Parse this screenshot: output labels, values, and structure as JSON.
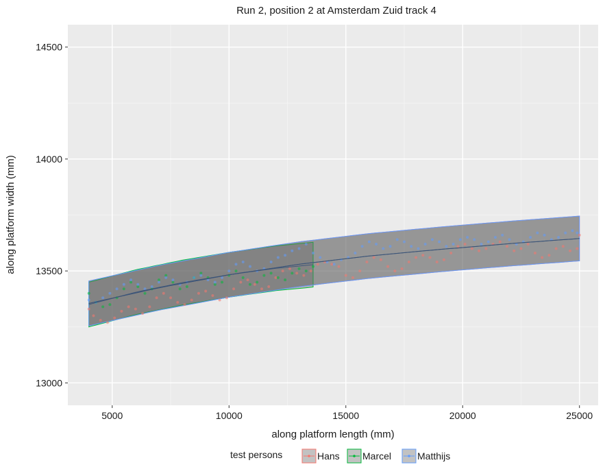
{
  "chart_data": {
    "type": "line",
    "title": "Run 2, position 2 at Amsterdam Zuid track 4",
    "xlabel": "along platform length (mm)",
    "ylabel": "along platform width (mm)",
    "xlim": [
      3100,
      25800
    ],
    "ylim": [
      12900,
      14600
    ],
    "x_ticks": [
      5000,
      10000,
      15000,
      20000,
      25000
    ],
    "y_ticks": [
      13000,
      13500,
      14000,
      14500
    ],
    "x_tick_labels": [
      "5000",
      "10000",
      "15000",
      "20000",
      "25000"
    ],
    "y_tick_labels": [
      "13000",
      "13500",
      "14000",
      "14500"
    ],
    "grid": true,
    "legend": {
      "title": "test persons",
      "position": "bottom"
    },
    "band_half_width": 100,
    "series": [
      {
        "name": "Hans",
        "color": "#F8766D",
        "fit": {
          "x": [
            4000,
            7000,
            10000,
            13000,
            16000,
            19000,
            22000,
            25000
          ],
          "y": [
            13355,
            13425,
            13483,
            13530,
            13567,
            13596,
            13622,
            13645
          ]
        },
        "points": {
          "x": [
            4000,
            4200,
            4500,
            4800,
            5100,
            5400,
            5700,
            6000,
            6300,
            6600,
            6900,
            7200,
            7500,
            7800,
            8100,
            8400,
            8700,
            9000,
            9300,
            9600,
            9900,
            10200,
            10500,
            10800,
            11100,
            11400,
            11700,
            12000,
            12300,
            12600,
            12900,
            13200,
            13500,
            13800,
            14100,
            14400,
            14700,
            15000,
            15300,
            15600,
            15900,
            16200,
            16500,
            16800,
            17100,
            17400,
            17700,
            18000,
            18300,
            18600,
            18900,
            19200,
            19500,
            19800,
            20100,
            20400,
            20700,
            21000,
            21300,
            21600,
            21900,
            22200,
            22500,
            22800,
            23100,
            23400,
            23700,
            24000,
            24300,
            24600,
            24900,
            25000
          ],
          "y": [
            13330,
            13300,
            13280,
            13270,
            13290,
            13320,
            13340,
            13330,
            13310,
            13340,
            13380,
            13400,
            13380,
            13360,
            13350,
            13370,
            13400,
            13410,
            13390,
            13370,
            13380,
            13420,
            13450,
            13460,
            13440,
            13420,
            13430,
            13470,
            13500,
            13510,
            13490,
            13480,
            13500,
            13530,
            13540,
            13530,
            13520,
            13480,
            13470,
            13500,
            13540,
            13560,
            13550,
            13520,
            13500,
            13510,
            13540,
            13560,
            13570,
            13560,
            13540,
            13550,
            13580,
            13610,
            13620,
            13600,
            13590,
            13600,
            13620,
            13630,
            13610,
            13590,
            13600,
            13620,
            13580,
            13560,
            13570,
            13600,
            13610,
            13590,
            13600,
            13660
          ]
        }
      },
      {
        "name": "Marcel",
        "color": "#00BA38",
        "fit": {
          "x": [
            4000,
            6000,
            8000,
            10000,
            12000,
            13600
          ],
          "y": [
            13350,
            13405,
            13448,
            13483,
            13512,
            13528
          ]
        },
        "points": {
          "x": [
            4000,
            4300,
            4600,
            4900,
            5200,
            5500,
            5800,
            6100,
            6400,
            6700,
            7000,
            7300,
            7600,
            7900,
            8200,
            8500,
            8800,
            9100,
            9400,
            9700,
            10000,
            10300,
            10600,
            10900,
            11200,
            11500,
            11800,
            12100,
            12400,
            12700,
            13000,
            13300,
            13600
          ],
          "y": [
            13400,
            13360,
            13340,
            13350,
            13380,
            13420,
            13450,
            13430,
            13400,
            13420,
            13460,
            13480,
            13450,
            13420,
            13430,
            13470,
            13490,
            13470,
            13440,
            13450,
            13480,
            13500,
            13470,
            13440,
            13450,
            13480,
            13490,
            13470,
            13460,
            13490,
            13510,
            13500,
            13520
          ]
        }
      },
      {
        "name": "Matthijs",
        "color": "#619CFF",
        "fit": {
          "x": [
            4000,
            7000,
            10000,
            13000,
            16000,
            19000,
            22000,
            25000
          ],
          "y": [
            13355,
            13425,
            13483,
            13530,
            13567,
            13596,
            13622,
            13645
          ]
        },
        "points": {
          "x": [
            4000,
            4300,
            4600,
            4900,
            5200,
            5500,
            5800,
            6100,
            6400,
            6700,
            7000,
            7300,
            7600,
            7900,
            8200,
            8500,
            8800,
            9100,
            9400,
            9700,
            10000,
            10300,
            10600,
            10900,
            11200,
            11500,
            11800,
            12100,
            12400,
            12700,
            13000,
            13300,
            13600,
            13900,
            14200,
            14500,
            14800,
            15100,
            15400,
            15700,
            16000,
            16300,
            16600,
            16900,
            17200,
            17500,
            17800,
            18100,
            18400,
            18700,
            19000,
            19300,
            19600,
            19900,
            20200,
            20500,
            20800,
            21100,
            21400,
            21700,
            22000,
            22300,
            22600,
            22900,
            23200,
            23500,
            23800,
            24100,
            24400,
            24700,
            24900
          ],
          "y": [
            13370,
            13360,
            13380,
            13400,
            13420,
            13440,
            13460,
            13440,
            13420,
            13430,
            13450,
            13470,
            13460,
            13440,
            13450,
            13470,
            13480,
            13460,
            13450,
            13470,
            13500,
            13530,
            13540,
            13520,
            13500,
            13510,
            13540,
            13560,
            13570,
            13590,
            13600,
            13620,
            13580,
            13560,
            13540,
            13530,
            13550,
            13560,
            13580,
            13610,
            13630,
            13620,
            13600,
            13610,
            13640,
            13630,
            13610,
            13600,
            13620,
            13640,
            13630,
            13610,
            13620,
            13640,
            13650,
            13640,
            13620,
            13630,
            13650,
            13660,
            13640,
            13620,
            13630,
            13650,
            13670,
            13660,
            13640,
            13650,
            13670,
            13680,
            13670
          ]
        }
      }
    ]
  }
}
